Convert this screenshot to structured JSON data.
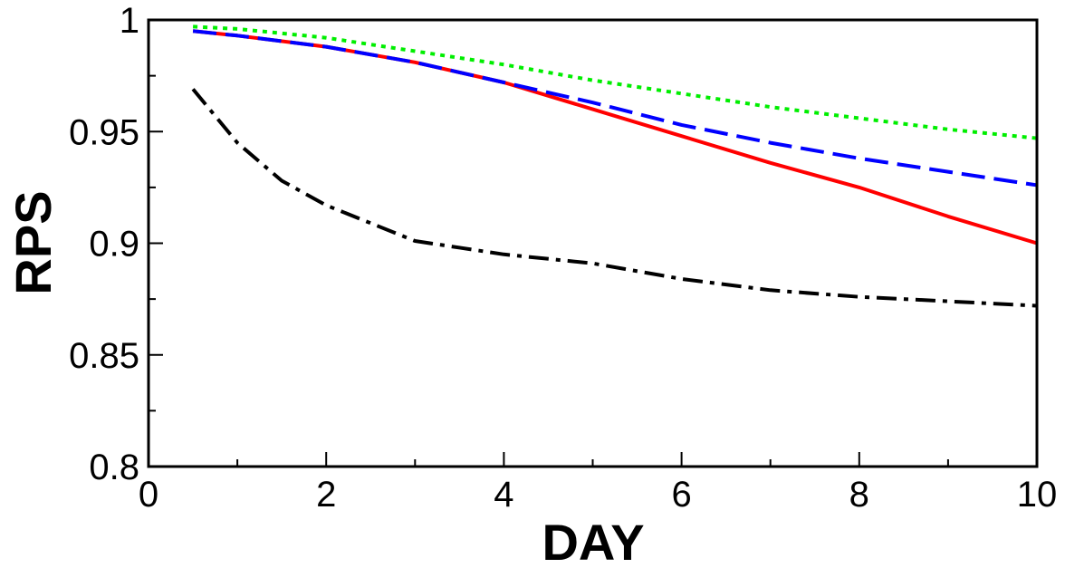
{
  "chart_data": {
    "type": "line",
    "xlabel": "DAY",
    "ylabel": "RPS",
    "xlim": [
      0,
      10
    ],
    "ylim": [
      0.8,
      1.0
    ],
    "x_ticks": [
      0,
      2,
      4,
      6,
      8,
      10
    ],
    "x_tick_labels": [
      "0",
      "2",
      "4",
      "6",
      "8",
      "10"
    ],
    "y_ticks": [
      0.8,
      0.85,
      0.9,
      0.95,
      1.0
    ],
    "y_tick_labels": [
      "0.8",
      "0.85",
      "0.9",
      "0.95",
      "1"
    ],
    "grid": false,
    "legend": "none",
    "series": [
      {
        "color": "#ff0000",
        "style": "solid",
        "x": [
          0.5,
          1,
          2,
          3,
          4,
          5,
          6,
          7,
          8,
          9,
          10
        ],
        "y": [
          0.995,
          0.993,
          0.988,
          0.981,
          0.972,
          0.96,
          0.948,
          0.936,
          0.925,
          0.912,
          0.9
        ]
      },
      {
        "color": "#0000ff",
        "style": "dashed",
        "x": [
          0.5,
          1,
          2,
          3,
          4,
          5,
          6,
          7,
          8,
          9,
          10
        ],
        "y": [
          0.995,
          0.993,
          0.988,
          0.981,
          0.972,
          0.963,
          0.953,
          0.945,
          0.938,
          0.932,
          0.926
        ]
      },
      {
        "color": "#00ee00",
        "style": "dotted",
        "x": [
          0.5,
          1,
          2,
          3,
          4,
          5,
          6,
          7,
          8,
          9,
          10
        ],
        "y": [
          0.997,
          0.996,
          0.992,
          0.986,
          0.98,
          0.973,
          0.967,
          0.961,
          0.956,
          0.951,
          0.947
        ]
      },
      {
        "color": "#000000",
        "style": "dashdot",
        "x": [
          0.5,
          1,
          1.5,
          2,
          3,
          4,
          5,
          6,
          7,
          8,
          9,
          10
        ],
        "y": [
          0.969,
          0.945,
          0.928,
          0.917,
          0.901,
          0.895,
          0.891,
          0.884,
          0.879,
          0.876,
          0.874,
          0.872
        ]
      }
    ]
  }
}
